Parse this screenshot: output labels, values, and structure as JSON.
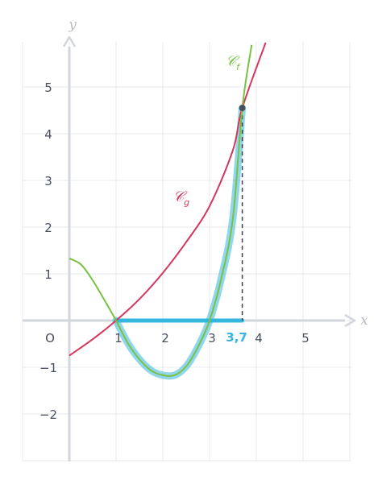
{
  "chart_data": {
    "type": "line",
    "xlabel": "x",
    "ylabel": "y",
    "origin_label": "O",
    "xlim": [
      -1,
      6
    ],
    "ylim": [
      -3,
      6
    ],
    "x_ticks": [
      {
        "value": 1,
        "label": "1"
      },
      {
        "value": 2,
        "label": "2"
      },
      {
        "value": 3,
        "label": "3"
      },
      {
        "value": 4,
        "label": "4"
      },
      {
        "value": 5,
        "label": "5"
      }
    ],
    "y_ticks": [
      {
        "value": -2,
        "label": "−2"
      },
      {
        "value": -1,
        "label": "−1"
      },
      {
        "value": 1,
        "label": "1"
      },
      {
        "value": 2,
        "label": "2"
      },
      {
        "value": 3,
        "label": "3"
      },
      {
        "value": 4,
        "label": "4"
      },
      {
        "value": 5,
        "label": "5"
      }
    ],
    "grid": true,
    "highlight_x": {
      "value": 3.7,
      "label": "3,7"
    },
    "series": [
      {
        "name": "𝒞",
        "subscript": "f",
        "color": "#7ac143",
        "x": [
          0,
          0.25,
          0.5,
          0.75,
          1,
          1.25,
          1.5,
          1.75,
          2,
          2.25,
          2.5,
          2.75,
          3,
          3.25,
          3.5,
          3.7,
          3.9
        ],
        "y": [
          1.33,
          1.2,
          0.86,
          0.44,
          0,
          -0.48,
          -0.83,
          -1.07,
          -1.17,
          -1.17,
          -0.98,
          -0.57,
          0,
          0.9,
          2.2,
          4.55,
          5.9
        ]
      },
      {
        "name": "𝒞",
        "subscript": "g",
        "color": "#d6365e",
        "x": [
          0,
          0.5,
          1,
          1.5,
          2,
          2.5,
          3,
          3.5,
          3.7,
          4.2
        ],
        "y": [
          -0.75,
          -0.4,
          0,
          0.46,
          1.02,
          1.68,
          2.45,
          3.65,
          4.55,
          5.95
        ]
      }
    ],
    "intersection": {
      "x": 3.7,
      "y": 4.55
    },
    "highlight_color": "#34b6dd"
  }
}
